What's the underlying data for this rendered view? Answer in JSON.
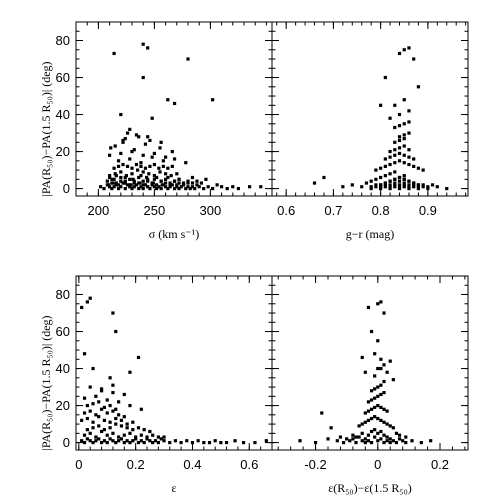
{
  "chart_data": [
    {
      "type": "scatter",
      "xlabel": "σ (km s⁻¹)",
      "ylabel": "|PA(R₅₀)−PA(1.5 R₅₀)| (deg)",
      "xlim": [
        180,
        355
      ],
      "ylim": [
        -4,
        90
      ],
      "xticks": [
        200,
        250,
        300
      ],
      "yticks": [
        0,
        20,
        40,
        60,
        80
      ],
      "series": [
        {
          "x": [
            202,
            205,
            208,
            210,
            212,
            214,
            216,
            218,
            220,
            222,
            224,
            226,
            228,
            230,
            232,
            234,
            236,
            238,
            240,
            242,
            244,
            246,
            248,
            250,
            252,
            254,
            256,
            258,
            260,
            262,
            264,
            266,
            268,
            270,
            272,
            274,
            276,
            278,
            280,
            282,
            284,
            286,
            288,
            290,
            294,
            298,
            302,
            306,
            310,
            315,
            320,
            325,
            335,
            345,
            208,
            212,
            216,
            220,
            224,
            228,
            232,
            236,
            240,
            244,
            248,
            252,
            256,
            260,
            264,
            268,
            272,
            276,
            280,
            284,
            288,
            292,
            210,
            215,
            220,
            225,
            230,
            235,
            240,
            245,
            250,
            255,
            260,
            265,
            270,
            214,
            218,
            222,
            226,
            230,
            234,
            238,
            242,
            246,
            250,
            254,
            258,
            262,
            266,
            212,
            216,
            220,
            224,
            228,
            232,
            236,
            240,
            244,
            248,
            252,
            256,
            260,
            264,
            268,
            272,
            276,
            280,
            218,
            228,
            238,
            248,
            258,
            268,
            278,
            210,
            220,
            230,
            240,
            250,
            260,
            211,
            215,
            222,
            232,
            242,
            255,
            266,
            224,
            236,
            246,
            256,
            226,
            234,
            244,
            210,
            214,
            216,
            224,
            231,
            238,
            243,
            250,
            262,
            272,
            284,
            296,
            209,
            213,
            218,
            223,
            229,
            237,
            241,
            249,
            257,
            270,
            214,
            240,
            244,
            262,
            280,
            268,
            302,
            220,
            248,
            240,
            228,
            222
          ],
          "y": [
            1,
            0,
            2,
            1,
            0,
            1,
            2,
            0,
            1,
            3,
            0,
            2,
            1,
            0,
            1,
            2,
            0,
            1,
            0,
            2,
            1,
            0,
            2,
            1,
            0,
            1,
            0,
            2,
            1,
            0,
            1,
            2,
            0,
            1,
            0,
            1,
            2,
            0,
            1,
            0,
            1,
            0,
            2,
            1,
            0,
            1,
            0,
            2,
            1,
            0,
            1,
            0,
            1,
            1,
            4,
            5,
            3,
            6,
            4,
            5,
            3,
            6,
            4,
            5,
            3,
            6,
            4,
            5,
            3,
            4,
            5,
            3,
            4,
            3,
            4,
            3,
            7,
            8,
            9,
            7,
            8,
            10,
            9,
            8,
            7,
            9,
            8,
            7,
            8,
            11,
            12,
            13,
            12,
            11,
            13,
            12,
            11,
            12,
            13,
            11,
            12,
            11,
            12,
            3,
            2,
            4,
            3,
            2,
            4,
            3,
            2,
            4,
            3,
            2,
            4,
            3,
            2,
            4,
            3,
            2,
            3,
            15,
            16,
            14,
            17,
            15,
            16,
            14,
            18,
            19,
            20,
            18,
            19,
            17,
            22,
            23,
            25,
            21,
            24,
            22,
            20,
            27,
            28,
            26,
            25,
            30,
            29,
            28,
            6,
            5,
            7,
            6,
            5,
            7,
            6,
            5,
            6,
            5,
            6,
            5,
            2,
            3,
            2,
            3,
            2,
            3,
            2,
            3,
            2,
            2,
            73,
            78,
            76,
            48,
            70,
            46,
            48,
            40,
            38,
            60,
            32,
            26
          ]
        }
      ]
    },
    {
      "type": "scatter",
      "xlabel": "g−r (mag)",
      "ylabel": "",
      "xlim": [
        0.57,
        0.985
      ],
      "ylim": [
        -4,
        90
      ],
      "xticks": [
        0.6,
        0.7,
        0.8,
        0.9
      ],
      "yticks": [
        0,
        20,
        40,
        60,
        80
      ],
      "series": [
        {
          "x": [
            0.66,
            0.68,
            0.72,
            0.74,
            0.76,
            0.77,
            0.78,
            0.78,
            0.79,
            0.79,
            0.8,
            0.8,
            0.8,
            0.81,
            0.81,
            0.81,
            0.82,
            0.82,
            0.82,
            0.82,
            0.83,
            0.83,
            0.83,
            0.83,
            0.84,
            0.84,
            0.84,
            0.84,
            0.85,
            0.85,
            0.85,
            0.85,
            0.86,
            0.86,
            0.86,
            0.87,
            0.87,
            0.88,
            0.88,
            0.89,
            0.9,
            0.91,
            0.92,
            0.94,
            0.79,
            0.8,
            0.81,
            0.82,
            0.83,
            0.84,
            0.85,
            0.86,
            0.87,
            0.88,
            0.89,
            0.81,
            0.82,
            0.83,
            0.84,
            0.85,
            0.86,
            0.87,
            0.82,
            0.83,
            0.84,
            0.85,
            0.86,
            0.83,
            0.84,
            0.85,
            0.84,
            0.85,
            0.86,
            0.83,
            0.84,
            0.85,
            0.86,
            0.8,
            0.81,
            0.82,
            0.83,
            0.84,
            0.85,
            0.86,
            0.87,
            0.88,
            0.78,
            0.79,
            0.8,
            0.81,
            0.82,
            0.83,
            0.84,
            0.85,
            0.86,
            0.87,
            0.88,
            0.89,
            0.9,
            0.82,
            0.84,
            0.86,
            0.83,
            0.85,
            0.84,
            0.85,
            0.87,
            0.81,
            0.86,
            0.8,
            0.88
          ],
          "y": [
            3,
            6,
            1,
            2,
            1,
            3,
            0,
            4,
            1,
            5,
            0,
            2,
            6,
            1,
            3,
            7,
            0,
            2,
            4,
            8,
            1,
            3,
            5,
            9,
            0,
            2,
            4,
            6,
            1,
            3,
            5,
            7,
            0,
            2,
            4,
            1,
            3,
            0,
            2,
            1,
            0,
            2,
            1,
            0,
            10,
            11,
            12,
            13,
            14,
            15,
            14,
            13,
            12,
            11,
            10,
            16,
            17,
            18,
            19,
            18,
            17,
            16,
            20,
            21,
            22,
            23,
            21,
            25,
            26,
            27,
            28,
            29,
            30,
            33,
            34,
            35,
            36,
            2,
            3,
            4,
            5,
            6,
            5,
            4,
            3,
            2,
            1,
            2,
            1,
            2,
            1,
            2,
            1,
            2,
            1,
            2,
            1,
            2,
            1,
            38,
            40,
            42,
            45,
            48,
            73,
            75,
            70,
            60,
            76,
            45,
            55
          ]
        }
      ]
    },
    {
      "type": "scatter",
      "xlabel": "ε",
      "ylabel": "|PA(R₅₀)−PA(1.5 R₅₀)| (deg)",
      "xlim": [
        -0.01,
        0.68
      ],
      "ylim": [
        -4,
        90
      ],
      "xticks": [
        0,
        0.2,
        0.4,
        0.6
      ],
      "yticks": [
        0,
        20,
        40,
        60,
        80
      ],
      "series": [
        {
          "x": [
            0.01,
            0.02,
            0.03,
            0.04,
            0.05,
            0.06,
            0.07,
            0.08,
            0.09,
            0.1,
            0.11,
            0.12,
            0.13,
            0.14,
            0.15,
            0.16,
            0.17,
            0.18,
            0.19,
            0.2,
            0.21,
            0.22,
            0.23,
            0.24,
            0.25,
            0.26,
            0.27,
            0.28,
            0.29,
            0.3,
            0.32,
            0.34,
            0.36,
            0.38,
            0.4,
            0.42,
            0.44,
            0.46,
            0.48,
            0.5,
            0.52,
            0.55,
            0.58,
            0.62,
            0.66,
            0.02,
            0.04,
            0.06,
            0.08,
            0.1,
            0.12,
            0.14,
            0.16,
            0.18,
            0.2,
            0.22,
            0.24,
            0.26,
            0.28,
            0.3,
            0.03,
            0.05,
            0.07,
            0.09,
            0.11,
            0.13,
            0.15,
            0.17,
            0.19,
            0.21,
            0.23,
            0.25,
            0.01,
            0.03,
            0.05,
            0.07,
            0.09,
            0.11,
            0.13,
            0.15,
            0.17,
            0.19,
            0.02,
            0.04,
            0.06,
            0.08,
            0.1,
            0.12,
            0.14,
            0.16,
            0.03,
            0.05,
            0.07,
            0.09,
            0.11,
            0.13,
            0.02,
            0.06,
            0.1,
            0.14,
            0.18,
            0.22,
            0.08,
            0.12,
            0.16,
            0.04,
            0.08,
            0.12,
            0.01,
            0.02,
            0.03,
            0.04,
            0.12,
            0.13,
            0.18,
            0.21,
            0.05,
            0.11
          ],
          "y": [
            1,
            0,
            2,
            1,
            0,
            1,
            2,
            0,
            1,
            0,
            2,
            1,
            0,
            1,
            2,
            0,
            1,
            0,
            1,
            2,
            0,
            1,
            0,
            2,
            1,
            0,
            1,
            0,
            2,
            1,
            0,
            1,
            0,
            1,
            0,
            1,
            0,
            0,
            1,
            0,
            0,
            1,
            0,
            0,
            1,
            4,
            5,
            3,
            6,
            4,
            5,
            3,
            4,
            5,
            3,
            4,
            3,
            4,
            3,
            3,
            7,
            8,
            9,
            7,
            8,
            10,
            9,
            8,
            7,
            8,
            7,
            6,
            12,
            13,
            11,
            14,
            12,
            11,
            13,
            12,
            10,
            11,
            16,
            17,
            15,
            18,
            16,
            17,
            15,
            14,
            20,
            21,
            22,
            19,
            20,
            18,
            24,
            25,
            23,
            22,
            20,
            18,
            28,
            27,
            26,
            30,
            29,
            31,
            73,
            48,
            76,
            78,
            70,
            60,
            38,
            46,
            40,
            35
          ]
        }
      ]
    },
    {
      "type": "scatter",
      "xlabel": "ε(R₅₀)−ε(1.5 R₅₀)",
      "ylabel": "",
      "xlim": [
        -0.34,
        0.29
      ],
      "ylim": [
        -4,
        90
      ],
      "xticks": [
        -0.2,
        0,
        0.2
      ],
      "yticks": [
        0,
        20,
        40,
        60,
        80
      ],
      "series": [
        {
          "x": [
            -0.25,
            -0.2,
            -0.16,
            -0.13,
            -0.11,
            -0.09,
            -0.08,
            -0.07,
            -0.06,
            -0.05,
            -0.05,
            -0.04,
            -0.04,
            -0.03,
            -0.03,
            -0.02,
            -0.02,
            -0.01,
            -0.01,
            0.0,
            0.0,
            0.01,
            0.01,
            0.02,
            0.02,
            0.03,
            0.03,
            0.04,
            0.04,
            0.05,
            0.06,
            0.07,
            0.08,
            0.09,
            0.11,
            0.14,
            0.17,
            -0.06,
            -0.05,
            -0.04,
            -0.03,
            -0.02,
            -0.01,
            0.0,
            0.01,
            0.02,
            0.03,
            0.04,
            0.05,
            -0.04,
            -0.03,
            -0.02,
            -0.01,
            0.0,
            0.01,
            0.02,
            0.03,
            -0.03,
            -0.02,
            -0.01,
            0.0,
            0.01,
            0.02,
            -0.02,
            -0.01,
            0.0,
            0.01,
            0.02,
            -0.01,
            0.0,
            0.01,
            0.03,
            0.05,
            -0.07,
            -0.08,
            -0.1,
            -0.12,
            0.06,
            0.07,
            0.09,
            -0.03,
            0.0,
            0.02,
            -0.02,
            0.01,
            -0.01,
            0.0,
            0.02,
            -0.05,
            0.01,
            -0.04,
            0.04,
            -0.18,
            -0.15
          ],
          "y": [
            1,
            0,
            2,
            1,
            0,
            1,
            2,
            0,
            3,
            1,
            5,
            0,
            2,
            4,
            1,
            6,
            0,
            3,
            7,
            1,
            5,
            2,
            6,
            0,
            4,
            1,
            3,
            0,
            2,
            1,
            0,
            2,
            1,
            0,
            1,
            0,
            1,
            9,
            10,
            11,
            12,
            13,
            14,
            13,
            12,
            11,
            10,
            9,
            8,
            16,
            17,
            18,
            19,
            20,
            19,
            18,
            17,
            22,
            23,
            24,
            25,
            26,
            27,
            28,
            29,
            30,
            31,
            33,
            36,
            40,
            45,
            38,
            34,
            3,
            4,
            2,
            3,
            5,
            4,
            3,
            73,
            75,
            70,
            60,
            76,
            48,
            55,
            42,
            46,
            40,
            38,
            44,
            16,
            8
          ]
        }
      ]
    }
  ]
}
